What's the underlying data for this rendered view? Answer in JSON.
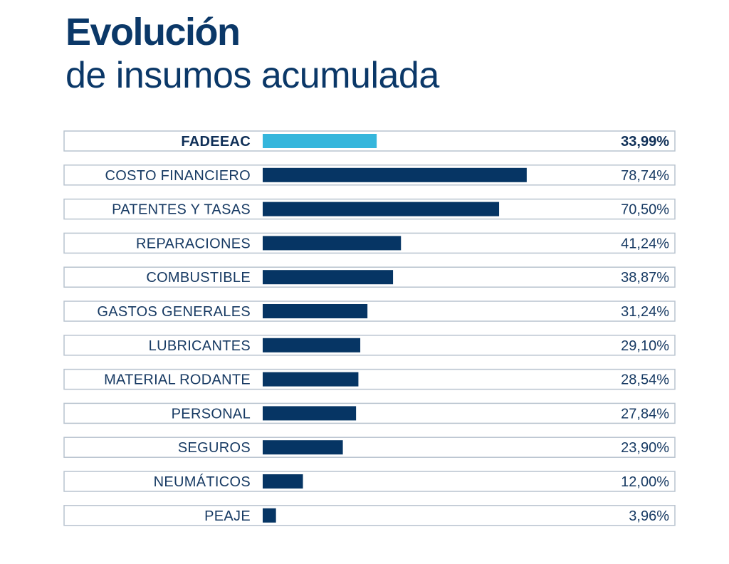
{
  "title": {
    "line1": "Evolución",
    "line2": "de insumos acumulada"
  },
  "colors": {
    "title": "#0b3868",
    "bar": "#063564",
    "highlight_bar": "#35b6dc",
    "text": "#173a63",
    "row_border": "#b9c4cf"
  },
  "chart_data": {
    "type": "bar",
    "orientation": "horizontal",
    "title": "Evolución de insumos acumulada",
    "xlabel": "",
    "ylabel": "",
    "unit": "%",
    "xlim": [
      0,
      100
    ],
    "grid": false,
    "legend": "none",
    "highlight_category": "FADEEAC",
    "categories": [
      "FADEEAC",
      "COSTO FINANCIERO",
      "PATENTES Y TASAS",
      "REPARACIONES",
      "COMBUSTIBLE",
      "GASTOS GENERALES",
      "LUBRICANTES",
      "MATERIAL RODANTE",
      "PERSONAL",
      "SEGUROS",
      "NEUMÁTICOS",
      "PEAJE"
    ],
    "values": [
      33.99,
      78.74,
      70.5,
      41.24,
      38.87,
      31.24,
      29.1,
      28.54,
      27.84,
      23.9,
      12.0,
      3.96
    ],
    "value_labels": [
      "33,99%",
      "78,74%",
      "70,50%",
      "41,24%",
      "38,87%",
      "31,24%",
      "29,10%",
      "28,54%",
      "27,84%",
      "23,90%",
      "12,00%",
      "3,96%"
    ]
  }
}
